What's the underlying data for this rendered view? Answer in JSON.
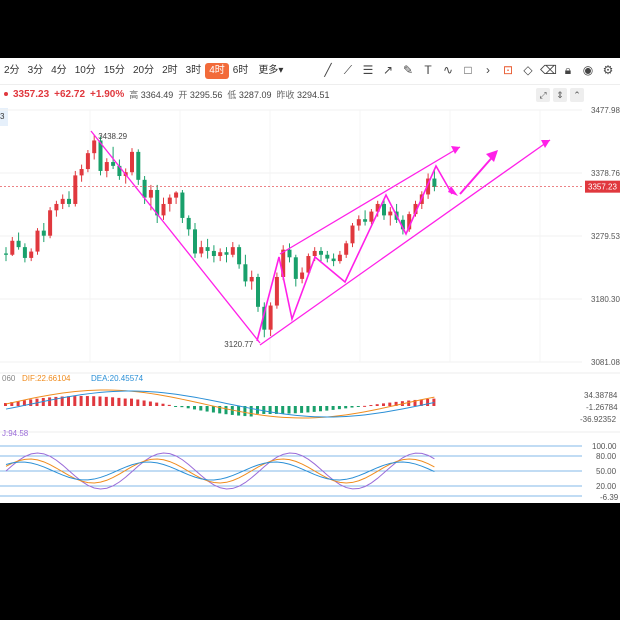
{
  "toolbar": {
    "timeframes": [
      "2分",
      "3分",
      "4分",
      "10分",
      "15分",
      "20分",
      "2时",
      "3时",
      "4时",
      "6时"
    ],
    "active_timeframe": "4时",
    "more_label": "更多"
  },
  "quote": {
    "price": "3357.23",
    "change": "+62.72",
    "change_pct": "+1.90%",
    "high_label": "高",
    "high": "3364.49",
    "open_label": "开",
    "open": "3295.56",
    "low_label": "低",
    "low": "3287.09",
    "prev_label": "昨收",
    "prev": "3294.51"
  },
  "side_badge": "3",
  "colors": {
    "up": "#e0383e",
    "down": "#19a06b",
    "annotation": "#ff20e8",
    "current_price_tag": "#e0383e"
  },
  "chart_data": {
    "type": "candlestick",
    "price_axis_ticks": [
      "3477.98",
      "3378.76",
      "3279.53",
      "3180.30",
      "3081.08"
    ],
    "current_price_label": "3357.23",
    "annotations": {
      "peak": "3438.29",
      "trough": "3120.77"
    },
    "ylim": [
      3081.08,
      3477.98
    ],
    "candles": [
      [
        3252,
        3262,
        3240,
        3250
      ],
      [
        3250,
        3278,
        3248,
        3272
      ],
      [
        3272,
        3285,
        3258,
        3262
      ],
      [
        3262,
        3268,
        3238,
        3245
      ],
      [
        3245,
        3260,
        3240,
        3255
      ],
      [
        3255,
        3292,
        3250,
        3288
      ],
      [
        3288,
        3300,
        3270,
        3280
      ],
      [
        3280,
        3325,
        3276,
        3320
      ],
      [
        3320,
        3335,
        3310,
        3330
      ],
      [
        3330,
        3345,
        3322,
        3338
      ],
      [
        3338,
        3350,
        3325,
        3330
      ],
      [
        3330,
        3382,
        3326,
        3375
      ],
      [
        3375,
        3392,
        3365,
        3385
      ],
      [
        3385,
        3415,
        3380,
        3410
      ],
      [
        3410,
        3438,
        3400,
        3430
      ],
      [
        3430,
        3436,
        3375,
        3382
      ],
      [
        3382,
        3402,
        3372,
        3396
      ],
      [
        3396,
        3420,
        3385,
        3390
      ],
      [
        3390,
        3400,
        3368,
        3374
      ],
      [
        3374,
        3386,
        3362,
        3380
      ],
      [
        3380,
        3418,
        3375,
        3412
      ],
      [
        3412,
        3416,
        3360,
        3368
      ],
      [
        3368,
        3374,
        3330,
        3340
      ],
      [
        3340,
        3360,
        3320,
        3352
      ],
      [
        3352,
        3360,
        3300,
        3312
      ],
      [
        3312,
        3340,
        3305,
        3330
      ],
      [
        3330,
        3345,
        3318,
        3340
      ],
      [
        3340,
        3350,
        3330,
        3348
      ],
      [
        3348,
        3352,
        3300,
        3308
      ],
      [
        3308,
        3312,
        3280,
        3290
      ],
      [
        3290,
        3300,
        3245,
        3252
      ],
      [
        3252,
        3272,
        3246,
        3262
      ],
      [
        3262,
        3275,
        3244,
        3256
      ],
      [
        3256,
        3265,
        3238,
        3248
      ],
      [
        3248,
        3260,
        3240,
        3254
      ],
      [
        3254,
        3262,
        3238,
        3250
      ],
      [
        3250,
        3270,
        3246,
        3262
      ],
      [
        3262,
        3266,
        3228,
        3235
      ],
      [
        3235,
        3250,
        3200,
        3208
      ],
      [
        3208,
        3225,
        3195,
        3215
      ],
      [
        3215,
        3220,
        3160,
        3168
      ],
      [
        3168,
        3175,
        3120,
        3132
      ],
      [
        3132,
        3175,
        3122,
        3170
      ],
      [
        3170,
        3222,
        3165,
        3215
      ],
      [
        3215,
        3265,
        3210,
        3258
      ],
      [
        3258,
        3268,
        3238,
        3246
      ],
      [
        3246,
        3250,
        3200,
        3212
      ],
      [
        3212,
        3230,
        3205,
        3222
      ],
      [
        3222,
        3252,
        3218,
        3248
      ],
      [
        3248,
        3262,
        3240,
        3256
      ],
      [
        3256,
        3262,
        3240,
        3250
      ],
      [
        3250,
        3256,
        3238,
        3244
      ],
      [
        3244,
        3252,
        3232,
        3240
      ],
      [
        3240,
        3256,
        3236,
        3250
      ],
      [
        3250,
        3272,
        3245,
        3268
      ],
      [
        3268,
        3300,
        3262,
        3296
      ],
      [
        3296,
        3312,
        3288,
        3306
      ],
      [
        3306,
        3320,
        3296,
        3302
      ],
      [
        3302,
        3322,
        3298,
        3318
      ],
      [
        3318,
        3335,
        3310,
        3330
      ],
      [
        3330,
        3338,
        3305,
        3312
      ],
      [
        3312,
        3325,
        3296,
        3318
      ],
      [
        3318,
        3330,
        3300,
        3305
      ],
      [
        3305,
        3312,
        3282,
        3290
      ],
      [
        3290,
        3318,
        3286,
        3314
      ],
      [
        3314,
        3335,
        3310,
        3330
      ],
      [
        3330,
        3350,
        3322,
        3345
      ],
      [
        3345,
        3378,
        3338,
        3370
      ],
      [
        3370,
        3385,
        3350,
        3357
      ]
    ],
    "macd": {
      "labels": {
        "params": "060",
        "dif": "DIF:22.66104",
        "dea": "DEA:20.45574"
      },
      "ticks": [
        "34.38784",
        "-1.26784",
        "-36.92352"
      ]
    },
    "kdj": {
      "label": "J:94.58",
      "ticks": [
        "100.00",
        "80.00",
        "50.00",
        "20.00",
        "-6.39"
      ]
    }
  }
}
